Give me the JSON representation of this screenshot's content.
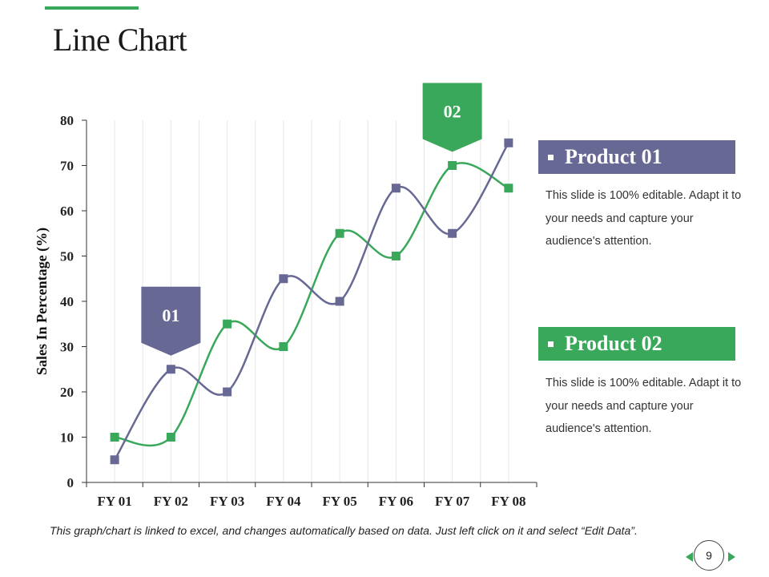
{
  "slide": {
    "title": "Line Chart",
    "footnote": "This graph/chart is linked to excel, and changes automatically based on data. Just left click on it and select “Edit Data”.",
    "page_number": "9"
  },
  "colors": {
    "accent_green": "#3aa85a",
    "product1_purple": "#676894",
    "grid": "#e6e6e6"
  },
  "callouts": [
    {
      "heading": "Product 01",
      "text": "This slide is 100% editable. Adapt it to your needs and capture your audience's attention.",
      "color": "#676894"
    },
    {
      "heading": "Product 02",
      "text": "This slide is 100% editable. Adapt it to your needs and capture your audience's attention.",
      "color": "#3aa85a"
    }
  ],
  "markers": [
    {
      "label": "01",
      "color": "#676894",
      "category": "FY 02",
      "series": "Product 01"
    },
    {
      "label": "02",
      "color": "#3aa85a",
      "category": "FY 07",
      "series": "Product 02"
    }
  ],
  "chart_data": {
    "type": "line",
    "title": "",
    "xlabel": "",
    "ylabel": "Sales In Percentage (%)",
    "ylim": [
      0,
      80
    ],
    "yticks": [
      0,
      10,
      20,
      30,
      40,
      50,
      60,
      70,
      80
    ],
    "categories": [
      "FY 01",
      "FY 02",
      "FY 03",
      "FY 04",
      "FY 05",
      "FY 06",
      "FY 07",
      "FY 08"
    ],
    "series": [
      {
        "name": "Product 01",
        "color": "#676894",
        "values": [
          5,
          25,
          20,
          45,
          40,
          65,
          55,
          75
        ]
      },
      {
        "name": "Product 02",
        "color": "#3aa85a",
        "values": [
          10,
          10,
          35,
          30,
          55,
          50,
          70,
          65
        ]
      }
    ],
    "grid": "vertical",
    "smooth": true
  }
}
